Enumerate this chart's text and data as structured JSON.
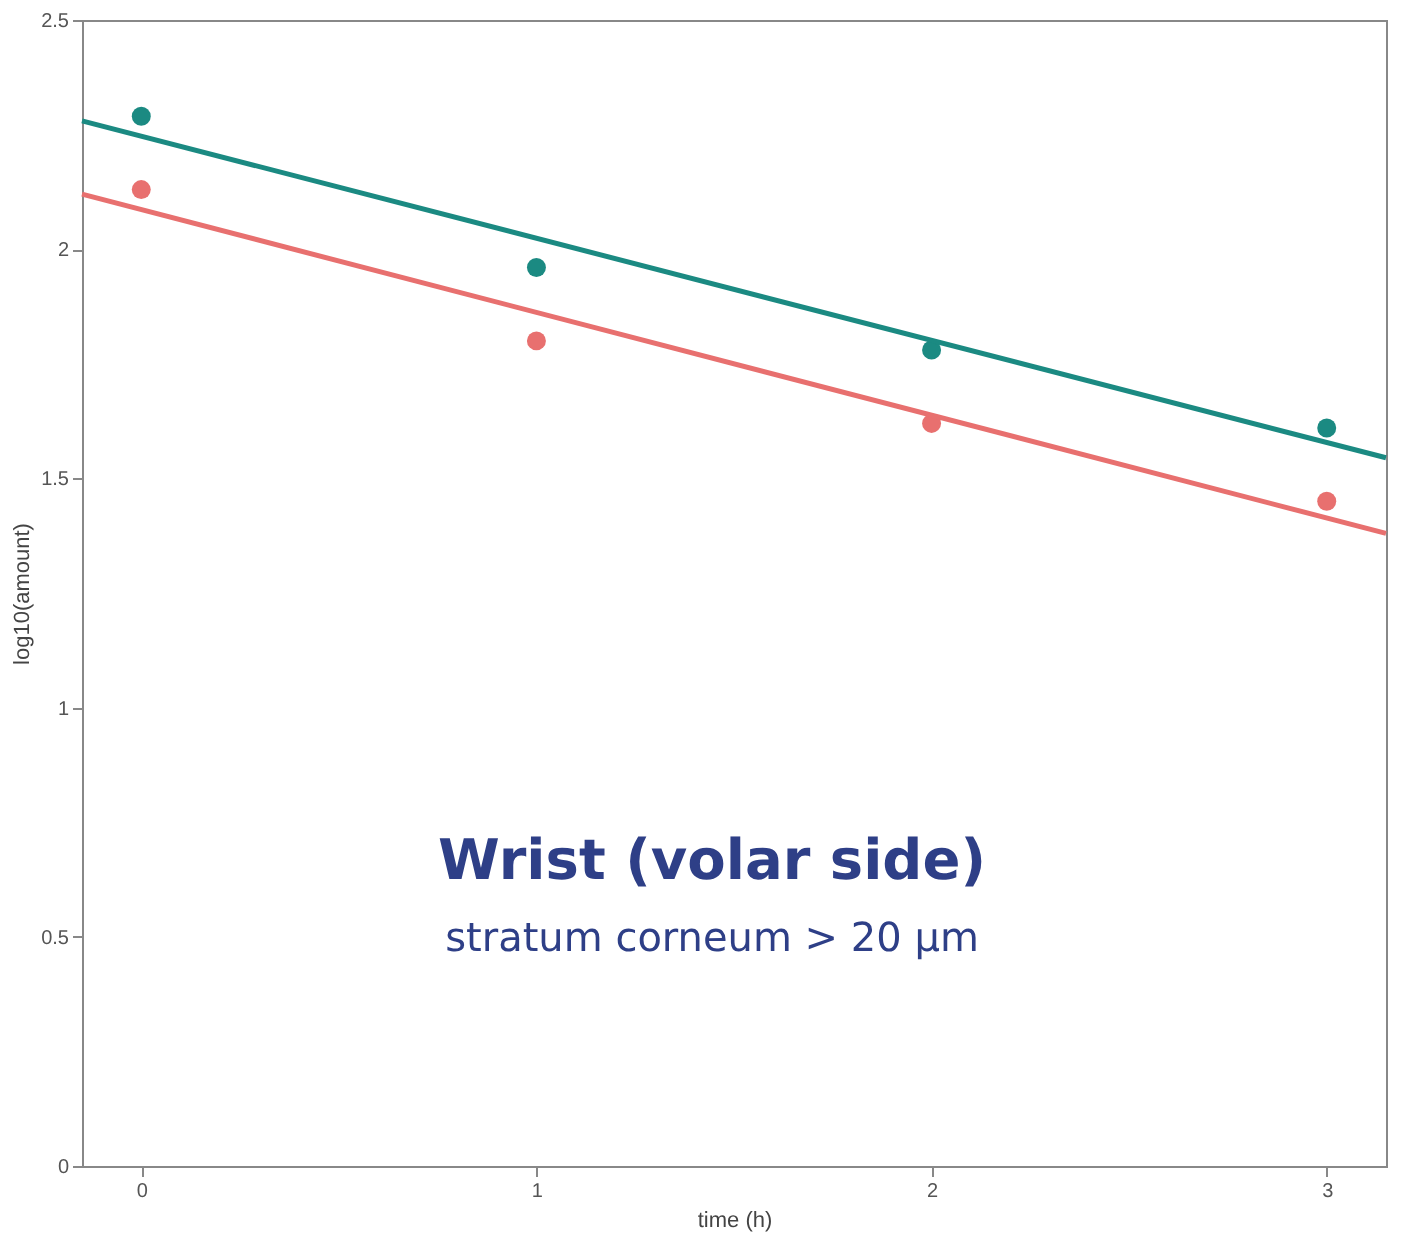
{
  "chart_data": {
    "type": "scatter",
    "xlabel": "time (h)",
    "ylabel": "log10(amount)",
    "xlim": [
      -0.15,
      3.15
    ],
    "xticks": [
      0,
      1,
      2,
      3
    ],
    "ylim": [
      0,
      2.5
    ],
    "yticks": [
      0,
      0.5,
      1,
      1.5,
      2,
      2.5
    ],
    "grid": false,
    "series": [
      {
        "marker": "circle",
        "color": "#1b8a82",
        "x": [
          0,
          1,
          2,
          3
        ],
        "values": [
          2.29,
          1.96,
          1.78,
          1.61
        ]
      },
      {
        "marker": "circle",
        "color": "#e8706f",
        "x": [
          0,
          1,
          2,
          3
        ],
        "values": [
          2.13,
          1.8,
          1.62,
          1.45
        ]
      },
      {
        "type": "line",
        "color": "#1b8a82",
        "x": [
          -0.15,
          3.15
        ],
        "values": [
          2.28,
          1.545
        ]
      },
      {
        "type": "line",
        "color": "#e8706f",
        "x": [
          -0.15,
          3.15
        ],
        "values": [
          2.12,
          1.38
        ]
      }
    ],
    "annotations": [
      "Wrist (volar side)",
      "stratum corneum  > 20 μm"
    ]
  }
}
